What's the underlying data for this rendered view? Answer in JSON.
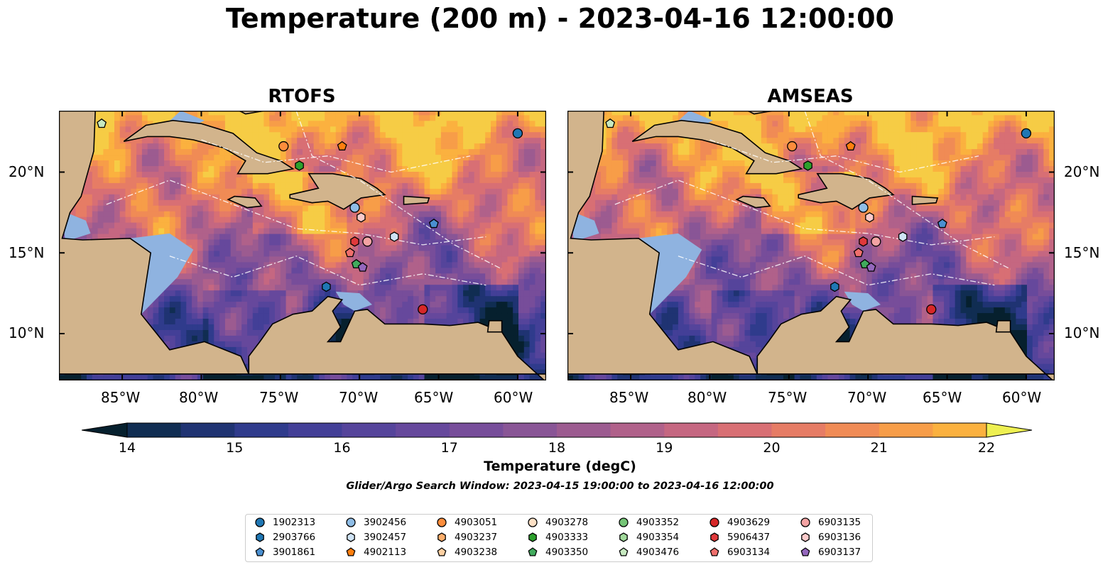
{
  "title": "Temperature (200 m) - 2023-04-16 12:00:00",
  "panels": [
    {
      "title": "RTOFS"
    },
    {
      "title": "AMSEAS"
    }
  ],
  "axes": {
    "x_ticks": [
      "85°W",
      "80°W",
      "75°W",
      "70°W",
      "65°W",
      "60°W"
    ],
    "y_ticks": [
      "20°N",
      "15°N",
      "10°N"
    ]
  },
  "colorbar": {
    "label": "Temperature (degC)",
    "ticks": [
      "14",
      "15",
      "16",
      "17",
      "18",
      "19",
      "20",
      "21",
      "22"
    ],
    "min": 14,
    "max": 22,
    "step": 0.5,
    "colors": [
      "#06202e",
      "#102d52",
      "#1f3372",
      "#2f3b8c",
      "#433f97",
      "#55449b",
      "#66489c",
      "#774d9a",
      "#895596",
      "#9c5b90",
      "#b0618a",
      "#c56781",
      "#d86f74",
      "#e67c65",
      "#f08b55",
      "#f79d48",
      "#fbb13f",
      "#f6cc45",
      "#eef052"
    ]
  },
  "search_window": "Glider/Argo Search Window: 2023-04-15 19:00:00 to 2023-04-16 12:00:00",
  "legend": {
    "columns": [
      [
        {
          "id": "1902313",
          "marker": "circle",
          "color": "#1f77b4"
        },
        {
          "id": "2903766",
          "marker": "hexagon",
          "color": "#1f77b4"
        },
        {
          "id": "3901861",
          "marker": "pentagon",
          "color": "#4a8fd0"
        }
      ],
      [
        {
          "id": "3902456",
          "marker": "circle",
          "color": "#8fbde6"
        },
        {
          "id": "3902457",
          "marker": "hexagon",
          "color": "#cfe3f5"
        },
        {
          "id": "4902113",
          "marker": "pentagon",
          "color": "#ff7f0e"
        }
      ],
      [
        {
          "id": "4903051",
          "marker": "circle",
          "color": "#fd8d3c"
        },
        {
          "id": "4903237",
          "marker": "hexagon",
          "color": "#fdae6b"
        },
        {
          "id": "4903238",
          "marker": "pentagon",
          "color": "#fdd0a2"
        }
      ],
      [
        {
          "id": "4903278",
          "marker": "circle",
          "color": "#fde0c5"
        },
        {
          "id": "4903333",
          "marker": "hexagon",
          "color": "#2ca02c"
        },
        {
          "id": "4903350",
          "marker": "pentagon",
          "color": "#41ab5d"
        }
      ],
      [
        {
          "id": "4903352",
          "marker": "circle",
          "color": "#74c476"
        },
        {
          "id": "4903354",
          "marker": "hexagon",
          "color": "#a1d99b"
        },
        {
          "id": "4903476",
          "marker": "pentagon",
          "color": "#c7e9c0"
        }
      ],
      [
        {
          "id": "4903629",
          "marker": "circle",
          "color": "#d62728"
        },
        {
          "id": "5906437",
          "marker": "hexagon",
          "color": "#e0393b"
        },
        {
          "id": "6903134",
          "marker": "pentagon",
          "color": "#ef6f6c"
        }
      ],
      [
        {
          "id": "6903135",
          "marker": "circle",
          "color": "#f4a3a3"
        },
        {
          "id": "6903136",
          "marker": "hexagon",
          "color": "#fbcaca"
        },
        {
          "id": "6903137",
          "marker": "pentagon",
          "color": "#9467bd"
        }
      ]
    ]
  },
  "floats": [
    {
      "id": "1902313",
      "lon": -60.0,
      "lat": 22.4
    },
    {
      "id": "4903476",
      "lon": -86.3,
      "lat": 23.0
    },
    {
      "id": "4903051",
      "lon": -74.8,
      "lat": 21.6
    },
    {
      "id": "4902113",
      "lon": -71.1,
      "lat": 21.6
    },
    {
      "id": "4903333",
      "lon": -73.8,
      "lat": 20.4
    },
    {
      "id": "3902456",
      "lon": -70.3,
      "lat": 17.8
    },
    {
      "id": "6903136",
      "lon": -69.9,
      "lat": 17.2
    },
    {
      "id": "3902457",
      "lon": -67.8,
      "lat": 16.0
    },
    {
      "id": "3901861",
      "lon": -65.3,
      "lat": 16.8
    },
    {
      "id": "5906437",
      "lon": -70.3,
      "lat": 15.7
    },
    {
      "id": "6903135",
      "lon": -69.5,
      "lat": 15.7
    },
    {
      "id": "6903134",
      "lon": -70.6,
      "lat": 15.0
    },
    {
      "id": "4903350",
      "lon": -70.2,
      "lat": 14.3
    },
    {
      "id": "6903137",
      "lon": -69.8,
      "lat": 14.1
    },
    {
      "id": "2903766",
      "lon": -72.1,
      "lat": 12.9
    },
    {
      "id": "4903629",
      "lon": -66.0,
      "lat": 11.5
    }
  ]
}
